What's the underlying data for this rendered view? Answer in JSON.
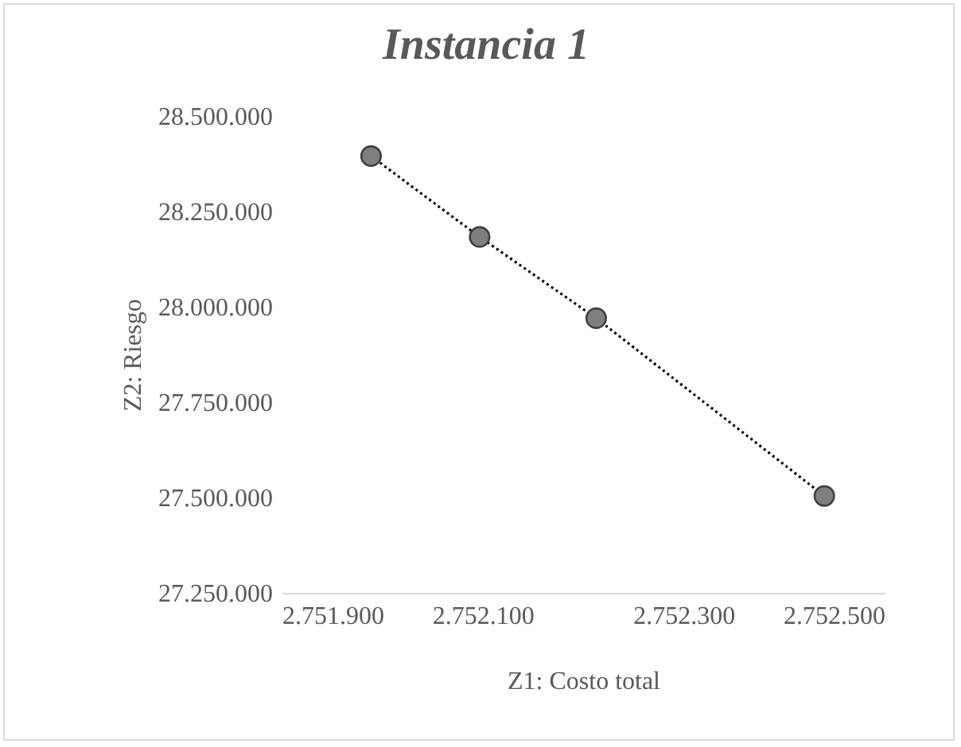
{
  "chart_data": {
    "type": "scatter",
    "title": "Instancia 1",
    "xlabel": "Z1: Costo total",
    "ylabel": "Z2: Riesgo",
    "x": [
      2751989,
      2752097,
      2752213,
      2752440
    ],
    "series": [
      {
        "type": "line",
        "color": "#000000",
        "line_style": "dotted",
        "values": [
          28395000,
          28183000,
          27970000,
          27504000
        ]
      },
      {
        "color": "#7f7f7f",
        "marker": "circle",
        "values": [
          28395000,
          28183000,
          27970000,
          27504000
        ]
      }
    ],
    "xlim": [
      2751900,
      2752500
    ],
    "xticks": [
      {
        "value": 2751900,
        "label": "2.751.900"
      },
      {
        "value": 2752100,
        "label": "2.752.100"
      },
      {
        "value": 2752300,
        "label": "2.752.300"
      },
      {
        "value": 2752500,
        "label": "2.752.500"
      }
    ],
    "ylim": [
      27250000,
      28500000
    ],
    "yticks": [
      {
        "value": 27250000,
        "label": "27.250.000"
      },
      {
        "value": 27500000,
        "label": "27.500.000"
      },
      {
        "value": 27750000,
        "label": "27.750.000"
      },
      {
        "value": 28000000,
        "label": "28.000.000"
      },
      {
        "value": 28250000,
        "label": "28.250.000"
      },
      {
        "value": 28500000,
        "label": "28.500.000"
      }
    ],
    "grid": false
  }
}
